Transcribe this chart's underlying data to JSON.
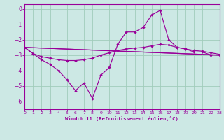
{
  "background_color": "#cce8e4",
  "grid_color": "#a0ccbb",
  "line_color": "#990099",
  "xlabel": "Windchill (Refroidissement éolien,°C)",
  "xlim": [
    0,
    23
  ],
  "ylim": [
    -6.5,
    0.3
  ],
  "yticks": [
    0,
    -1,
    -2,
    -3,
    -4,
    -5,
    -6
  ],
  "xticks": [
    0,
    1,
    2,
    3,
    4,
    5,
    6,
    7,
    8,
    9,
    10,
    11,
    12,
    13,
    14,
    15,
    16,
    17,
    18,
    19,
    20,
    21,
    22,
    23
  ],
  "line1_x": [
    0,
    1,
    2,
    3,
    4,
    5,
    6,
    7,
    8,
    9,
    10,
    11,
    12,
    13,
    14,
    15,
    16,
    17,
    18,
    19,
    20,
    21,
    22,
    23
  ],
  "line1_y": [
    -2.5,
    -2.9,
    -3.3,
    -3.6,
    -4.0,
    -4.6,
    -5.3,
    -4.8,
    -5.8,
    -4.3,
    -3.8,
    -2.3,
    -1.5,
    -1.5,
    -1.2,
    -0.4,
    -0.1,
    -2.0,
    -2.5,
    -2.6,
    -2.8,
    -2.8,
    -3.0,
    -3.0
  ],
  "line2_x": [
    0,
    1,
    2,
    3,
    4,
    5,
    6,
    7,
    8,
    9,
    10,
    11,
    12,
    13,
    14,
    15,
    16,
    17,
    18,
    19,
    20,
    21,
    22,
    23
  ],
  "line2_y": [
    -2.5,
    -2.9,
    -3.1,
    -3.2,
    -3.3,
    -3.35,
    -3.35,
    -3.3,
    -3.2,
    -3.0,
    -2.85,
    -2.7,
    -2.6,
    -2.55,
    -2.5,
    -2.4,
    -2.3,
    -2.35,
    -2.5,
    -2.6,
    -2.7,
    -2.75,
    -2.85,
    -2.95
  ],
  "line3_x": [
    0,
    23
  ],
  "line3_y": [
    -2.5,
    -3.0
  ],
  "line4_x": [
    0,
    23
  ],
  "line4_y": [
    -2.5,
    -3.0
  ]
}
